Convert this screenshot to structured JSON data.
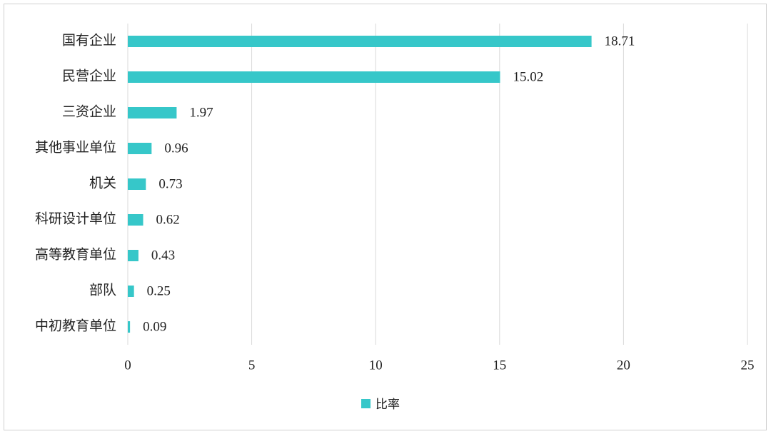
{
  "chart_data": {
    "type": "hbar",
    "categories": [
      "国有企业",
      "民营企业",
      "三资企业",
      "其他事业单位",
      "机关",
      "科研设计单位",
      "高等教育单位",
      "部队",
      "中初教育单位"
    ],
    "series": [
      {
        "name": "比率",
        "color": "#36c7c9",
        "values": [
          18.71,
          15.02,
          1.97,
          0.96,
          0.73,
          0.62,
          0.43,
          0.25,
          0.09
        ]
      }
    ],
    "xlim": [
      0,
      25
    ],
    "xticks": [
      0,
      5,
      10,
      15,
      20,
      25
    ],
    "grid": true,
    "legend": "bottom"
  }
}
